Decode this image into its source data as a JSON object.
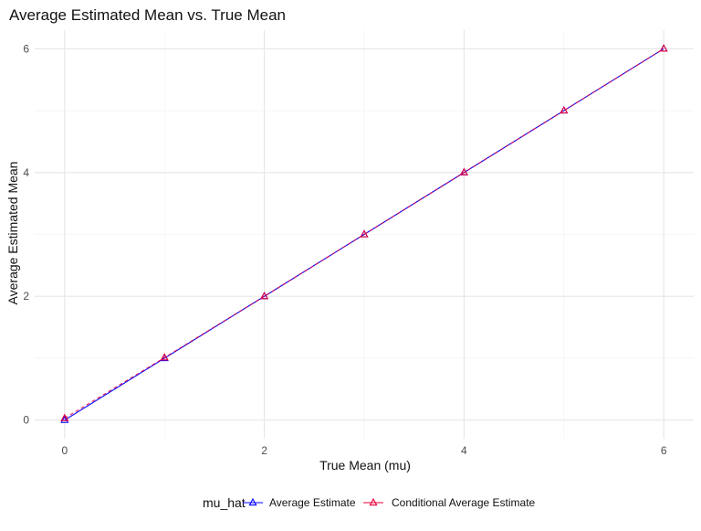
{
  "chart_data": {
    "type": "line",
    "title": "Average Estimated Mean vs. True Mean",
    "xlabel": "True Mean (mu)",
    "ylabel": "Average Estimated Mean",
    "xlim": [
      -0.3,
      6.3
    ],
    "ylim": [
      -0.3,
      6.3
    ],
    "x_ticks": [
      0,
      2,
      4,
      6
    ],
    "y_ticks": [
      0,
      2,
      4,
      6
    ],
    "x_minor_grid": [
      1,
      3,
      5
    ],
    "y_minor_grid": [
      1,
      3,
      5
    ],
    "grid": true,
    "legend": {
      "title": "mu_hat",
      "position": "bottom"
    },
    "x": [
      0,
      1,
      2,
      3,
      4,
      5,
      6
    ],
    "series": [
      {
        "name": "Average Estimate",
        "color": "#0000ff",
        "marker": "triangle-open",
        "values": [
          0.0,
          1.0,
          2.0,
          3.0,
          4.0,
          5.0,
          6.0
        ]
      },
      {
        "name": "Conditional Average Estimate",
        "color": "#e8003c",
        "marker": "triangle-open",
        "values": [
          0.03,
          1.01,
          2.0,
          3.0,
          4.0,
          5.0,
          6.0
        ]
      }
    ]
  }
}
